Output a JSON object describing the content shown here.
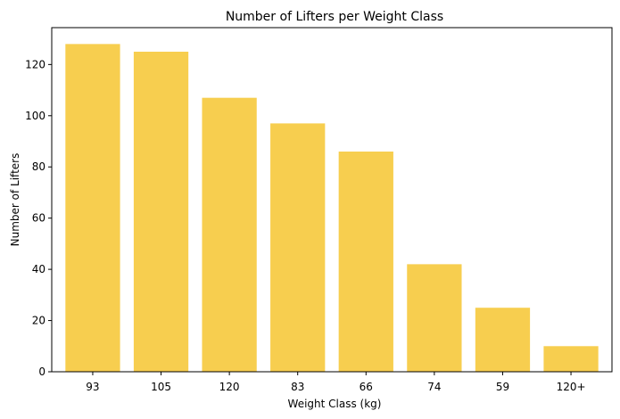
{
  "chart_data": {
    "type": "bar",
    "title": "Number of Lifters per Weight Class",
    "xlabel": "Weight Class (kg)",
    "ylabel": "Number of Lifters",
    "categories": [
      "93",
      "105",
      "120",
      "83",
      "66",
      "74",
      "59",
      "120+"
    ],
    "values": [
      128,
      125,
      107,
      97,
      86,
      42,
      25,
      10
    ],
    "ylim": [
      0,
      134.4
    ],
    "yticks": [
      0,
      20,
      40,
      60,
      80,
      100,
      120
    ],
    "bar_color": "#f7ce4f",
    "grid": false,
    "legend": "none"
  }
}
